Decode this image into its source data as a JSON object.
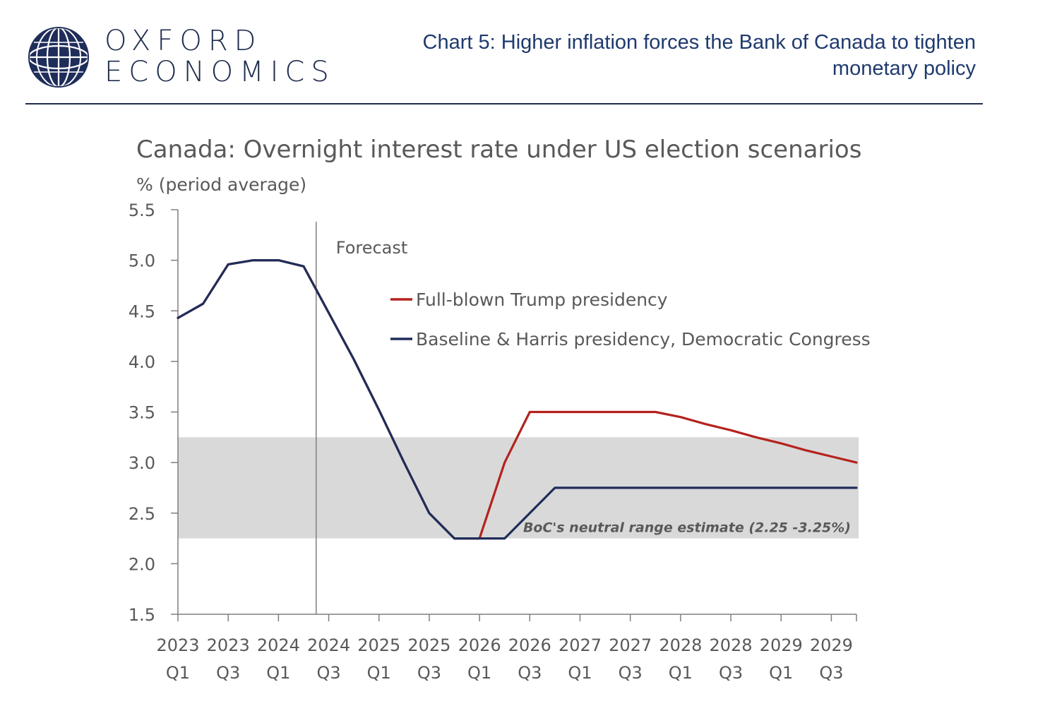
{
  "header": {
    "brand_line1": "OXFORD",
    "brand_line2": "ECONOMICS",
    "title": "Chart 5: Higher inflation forces the Bank of Canada to tighten monetary policy",
    "title_color": "#1f3a6e"
  },
  "icons": {
    "logo": "globe-logo-icon"
  },
  "chart_data": {
    "type": "line",
    "title": "Canada: Overnight interest rate under US election scenarios",
    "ylabel": "% (period average)",
    "ylim": [
      1.5,
      5.5
    ],
    "yticks": [
      "5.5",
      "5.0",
      "4.5",
      "4.0",
      "3.5",
      "3.0",
      "2.5",
      "2.0",
      "1.5"
    ],
    "categories": [
      "2023Q1",
      "2023Q2",
      "2023Q3",
      "2023Q4",
      "2024Q1",
      "2024Q2",
      "2024Q3",
      "2024Q4",
      "2025Q1",
      "2025Q2",
      "2025Q3",
      "2025Q4",
      "2026Q1",
      "2026Q2",
      "2026Q3",
      "2026Q4",
      "2027Q1",
      "2027Q2",
      "2027Q3",
      "2027Q4",
      "2028Q1",
      "2028Q2",
      "2028Q3",
      "2028Q4",
      "2029Q1",
      "2029Q2",
      "2029Q3",
      "2029Q4"
    ],
    "xtick_labels": [
      {
        "year": "2023",
        "quarter": "Q1"
      },
      {
        "year": "2023",
        "quarter": "Q3"
      },
      {
        "year": "2024",
        "quarter": "Q1"
      },
      {
        "year": "2024",
        "quarter": "Q3"
      },
      {
        "year": "2025",
        "quarter": "Q1"
      },
      {
        "year": "2025",
        "quarter": "Q3"
      },
      {
        "year": "2026",
        "quarter": "Q1"
      },
      {
        "year": "2026",
        "quarter": "Q3"
      },
      {
        "year": "2027",
        "quarter": "Q1"
      },
      {
        "year": "2027",
        "quarter": "Q3"
      },
      {
        "year": "2028",
        "quarter": "Q1"
      },
      {
        "year": "2028",
        "quarter": "Q3"
      },
      {
        "year": "2029",
        "quarter": "Q1"
      },
      {
        "year": "2029",
        "quarter": "Q3"
      }
    ],
    "series": [
      {
        "name": "Full-blown Trump presidency",
        "color": "#b5221d",
        "values": [
          4.43,
          4.57,
          4.96,
          5.0,
          5.0,
          4.94,
          4.48,
          4.02,
          3.52,
          3.0,
          2.5,
          2.25,
          2.25,
          3.0,
          3.5,
          3.5,
          3.5,
          3.5,
          3.5,
          3.5,
          3.45,
          3.38,
          3.32,
          3.25,
          3.19,
          3.12,
          3.06,
          3.0
        ]
      },
      {
        "name": "Baseline & Harris presidency, Democratic Congress",
        "color": "#1f2d5a",
        "values": [
          4.43,
          4.57,
          4.96,
          5.0,
          5.0,
          4.94,
          4.48,
          4.02,
          3.52,
          3.0,
          2.5,
          2.25,
          2.25,
          2.25,
          2.5,
          2.75,
          2.75,
          2.75,
          2.75,
          2.75,
          2.75,
          2.75,
          2.75,
          2.75,
          2.75,
          2.75,
          2.75,
          2.75
        ]
      }
    ],
    "forecast_start": "2024Q2",
    "forecast_label": "Forecast",
    "neutral_band": {
      "low": 2.25,
      "high": 3.25,
      "label": "BoC's neutral range estimate (2.25 -3.25%)",
      "color": "#d9d9d9"
    },
    "grid": false,
    "legend_position": "top-right",
    "axis_color": "#7f7f7f",
    "text_color": "#595959"
  }
}
